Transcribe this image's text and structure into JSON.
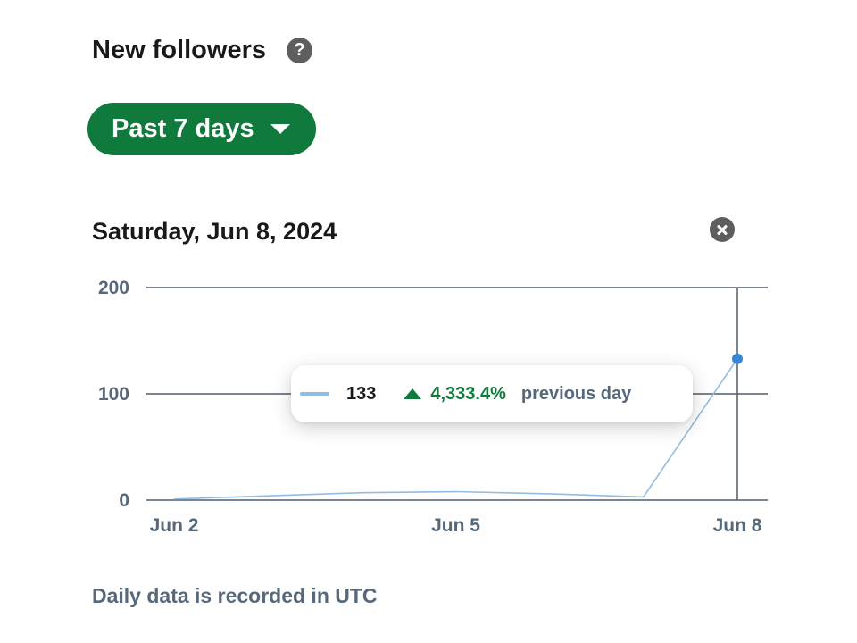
{
  "header": {
    "title": "New followers",
    "help_icon": "question-circle-icon"
  },
  "filter": {
    "label": "Past 7 days",
    "icon": "caret-down-icon",
    "accent_color": "#0f7a3c"
  },
  "selection": {
    "date_label": "Saturday, Jun 8, 2024",
    "close_icon": "close-circle-icon"
  },
  "tooltip": {
    "value": "133",
    "change": "4,333.4%",
    "change_direction": "up",
    "caption": "previous day",
    "change_color": "#0f7a3c"
  },
  "chart_data": {
    "type": "line",
    "x": [
      "Jun 2",
      "Jun 3",
      "Jun 4",
      "Jun 5",
      "Jun 6",
      "Jun 7",
      "Jun 8"
    ],
    "series": [
      {
        "values": [
          1,
          4,
          7,
          8,
          6,
          3,
          133
        ],
        "color": "#8fbde6"
      }
    ],
    "x_tick_labels": [
      "Jun 2",
      "Jun 5",
      "Jun 8"
    ],
    "x_tick_indices": [
      0,
      3,
      6
    ],
    "y_ticks": [
      0,
      100,
      200
    ],
    "ylim": [
      0,
      200
    ],
    "grid": true,
    "highlighted_index": 6,
    "highlight_color": "#3a86d4"
  },
  "footnote": "Daily data is recorded in UTC"
}
